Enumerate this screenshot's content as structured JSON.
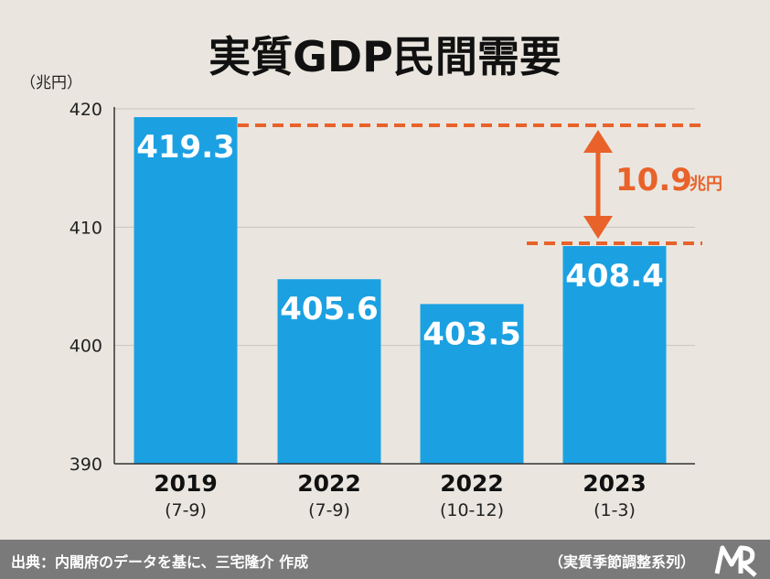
{
  "chart_data": {
    "type": "bar",
    "title": "実質GDP民間需要",
    "unit_label": "（兆円）",
    "categories": [
      {
        "year": "2019",
        "period": "(7-9)"
      },
      {
        "year": "2022",
        "period": "(7-9)"
      },
      {
        "year": "2022",
        "period": "(10-12)"
      },
      {
        "year": "2023",
        "period": "(1-3)"
      }
    ],
    "values": [
      419.3,
      405.6,
      403.5,
      408.4
    ],
    "value_labels": [
      "419.3",
      "405.6",
      "403.5",
      "408.4"
    ],
    "ylim": [
      390,
      420
    ],
    "yticks": [
      "390",
      "400",
      "410",
      "420"
    ],
    "grid": true,
    "annotation": {
      "value": "10.9",
      "unit": "兆円",
      "from": 408.4,
      "to": 419.3
    },
    "colors": {
      "bar": "#1ba1e2",
      "annotation": "#e8622a",
      "grid": "#c9c5be",
      "axis": "#333333"
    }
  },
  "footer": {
    "source": "出典：内閣府のデータを基に、三宅隆介 作成",
    "note": "（実質季節調整系列）",
    "logo_icon": "mr-logo-icon"
  }
}
